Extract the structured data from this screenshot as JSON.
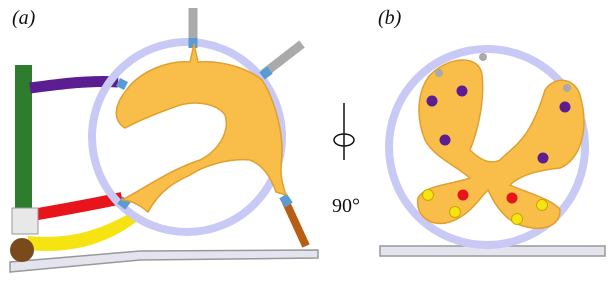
{
  "panels": [
    {
      "label": "(a)"
    },
    {
      "label": "(b)"
    }
  ],
  "rotation_label": "90°"
}
